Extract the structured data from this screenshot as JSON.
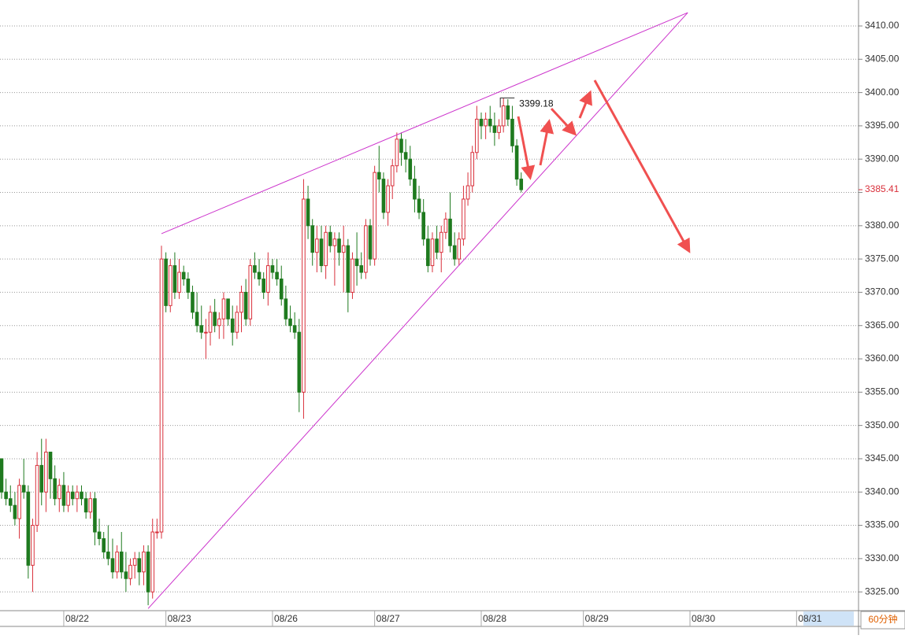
{
  "chart_data": {
    "type": "candlestick",
    "period": "60分钟",
    "up_color": "#d9303b",
    "down_color": "#1f7a1f",
    "grid": true,
    "open": [
      3345,
      3340,
      3339,
      3338,
      3336,
      3341,
      3340,
      3329,
      3335,
      3344,
      3340,
      3346,
      3342,
      3339,
      3341,
      3338,
      3340,
      3339,
      3340,
      3339,
      3337,
      3339,
      3334,
      3333,
      3331,
      3330,
      3328,
      3331,
      3328,
      3327,
      3329,
      3330,
      3328,
      3331,
      3325,
      3334,
      3334,
      3375,
      3368,
      3374,
      3370,
      3373,
      3372,
      3370,
      3367,
      3365,
      3364,
      3364,
      3367,
      3365,
      3366,
      3369,
      3366,
      3364,
      3367,
      3370,
      3366,
      3374,
      3373,
      3372,
      3370,
      3374,
      3373,
      3372,
      3369,
      3366,
      3365,
      3364,
      3355,
      3384,
      3380,
      3376,
      3378,
      3374,
      3379,
      3377,
      3378,
      3376,
      3377,
      3370,
      3375,
      3374,
      3373,
      3380,
      3375,
      3388,
      3387,
      3382,
      3386,
      3389,
      3393,
      3391,
      3390,
      3387,
      3384,
      3382,
      3378,
      3374,
      3378,
      3376,
      3379,
      3381,
      3377,
      3375,
      3378,
      3384,
      3386,
      3391,
      3396,
      3395,
      3396,
      3395,
      3394,
      3395,
      3398,
      3396,
      3392,
      3387
    ],
    "high": [
      3345,
      3342,
      3341,
      3340,
      3342,
      3345,
      3341,
      3336,
      3346,
      3348,
      3348,
      3346,
      3344,
      3342,
      3343,
      3341,
      3341,
      3341,
      3341,
      3340,
      3340,
      3340,
      3336,
      3334,
      3335,
      3333,
      3332,
      3334,
      3331,
      3330,
      3331,
      3331,
      3332,
      3332,
      3336,
      3336,
      3377,
      3376,
      3375,
      3376,
      3375,
      3374,
      3373,
      3371,
      3370,
      3368,
      3366,
      3368,
      3369,
      3367,
      3370,
      3369,
      3368,
      3368,
      3371,
      3372,
      3375,
      3376,
      3375,
      3373,
      3376,
      3375,
      3375,
      3374,
      3371,
      3368,
      3367,
      3366,
      3387,
      3386,
      3381,
      3380,
      3380,
      3380,
      3380,
      3379,
      3379,
      3380,
      3378,
      3376,
      3379,
      3376,
      3381,
      3381,
      3389,
      3392,
      3388,
      3387,
      3390,
      3394,
      3394,
      3393,
      3392,
      3389,
      3386,
      3384,
      3380,
      3379,
      3380,
      3380,
      3382,
      3385,
      3379,
      3379,
      3386,
      3388,
      3392,
      3398,
      3397,
      3397,
      3398,
      3397,
      3396,
      3399.18,
      3399,
      3398,
      3393,
      3388
    ],
    "low": [
      3339,
      3338,
      3337,
      3335,
      3333,
      3339,
      3327,
      3325,
      3334,
      3338,
      3337,
      3339,
      3338,
      3337,
      3337,
      3337,
      3338,
      3337,
      3338,
      3336,
      3336,
      3332,
      3332,
      3330,
      3329,
      3327,
      3327,
      3327,
      3325,
      3326,
      3327,
      3326,
      3326,
      3323,
      3324,
      3333,
      3333,
      3367,
      3367,
      3369,
      3369,
      3371,
      3369,
      3366,
      3364,
      3363,
      3360,
      3362,
      3364,
      3363,
      3363,
      3365,
      3362,
      3363,
      3364,
      3365,
      3365,
      3372,
      3371,
      3369,
      3368,
      3372,
      3371,
      3368,
      3365,
      3364,
      3363,
      3352,
      3351,
      3378,
      3374,
      3373,
      3373,
      3372,
      3376,
      3371,
      3374,
      3370,
      3367,
      3369,
      3371,
      3372,
      3372,
      3374,
      3374,
      3385,
      3381,
      3380,
      3384,
      3388,
      3389,
      3388,
      3386,
      3382,
      3381,
      3377,
      3373,
      3373,
      3375,
      3373,
      3378,
      3376,
      3374,
      3374,
      3377,
      3383,
      3385,
      3390,
      3393,
      3393,
      3394,
      3392,
      3393,
      3394,
      3395,
      3391,
      3386,
      3385
    ],
    "close": [
      3340,
      3339,
      3338,
      3336,
      3341,
      3340,
      3329,
      3335,
      3344,
      3340,
      3346,
      3342,
      3339,
      3341,
      3338,
      3340,
      3339,
      3340,
      3339,
      3337,
      3339,
      3334,
      3333,
      3331,
      3330,
      3328,
      3331,
      3328,
      3327,
      3329,
      3330,
      3328,
      3331,
      3325,
      3334,
      3334,
      3375,
      3368,
      3374,
      3370,
      3373,
      3372,
      3370,
      3367,
      3365,
      3364,
      3364,
      3367,
      3365,
      3366,
      3369,
      3366,
      3364,
      3367,
      3370,
      3366,
      3374,
      3373,
      3372,
      3370,
      3374,
      3373,
      3372,
      3369,
      3366,
      3365,
      3364,
      3355,
      3384,
      3380,
      3376,
      3378,
      3374,
      3379,
      3377,
      3378,
      3376,
      3377,
      3370,
      3375,
      3374,
      3373,
      3380,
      3375,
      3388,
      3387,
      3382,
      3386,
      3389,
      3393,
      3391,
      3390,
      3387,
      3384,
      3382,
      3378,
      3374,
      3378,
      3376,
      3379,
      3381,
      3377,
      3375,
      3378,
      3384,
      3386,
      3391,
      3396,
      3395,
      3396,
      3395,
      3394,
      3395,
      3398,
      3396,
      3392,
      3387,
      3385.41
    ],
    "xlim": [
      0,
      191
    ],
    "xticks": [
      {
        "value": 14,
        "label": "08/22"
      },
      {
        "value": 37,
        "label": "08/23"
      },
      {
        "value": 61,
        "label": "08/26"
      },
      {
        "value": 84,
        "label": "08/27"
      },
      {
        "value": 108,
        "label": "08/28"
      },
      {
        "value": 131,
        "label": "08/29"
      },
      {
        "value": 155,
        "label": "08/30"
      },
      {
        "value": 179,
        "label": "08/31"
      }
    ],
    "ylim": [
      3322.3,
      3413.9
    ],
    "yticks": [
      {
        "value": 3325,
        "label": "3325.00"
      },
      {
        "value": 3330,
        "label": "3330.00"
      },
      {
        "value": 3335,
        "label": "3335.00"
      },
      {
        "value": 3340,
        "label": "3340.00"
      },
      {
        "value": 3345,
        "label": "3345.00"
      },
      {
        "value": 3350,
        "label": "3350.00"
      },
      {
        "value": 3355,
        "label": "3355.00"
      },
      {
        "value": 3360,
        "label": "3360.00"
      },
      {
        "value": 3365,
        "label": "3365.00"
      },
      {
        "value": 3370,
        "label": "3370.00"
      },
      {
        "value": 3375,
        "label": "3375.00"
      },
      {
        "value": 3380,
        "label": "3380.00"
      },
      {
        "value": 3385,
        "label": "3385.00"
      },
      {
        "value": 3390,
        "label": "3390.00"
      },
      {
        "value": 3395,
        "label": "3395.00"
      },
      {
        "value": 3400,
        "label": "3400.00"
      },
      {
        "value": 3405,
        "label": "3405.00"
      },
      {
        "value": 3410,
        "label": "3410.00"
      }
    ],
    "trendlines": [
      {
        "color": "#cc33cc",
        "points": [
          [
            36,
            3378.8
          ],
          [
            154.5,
            3412
          ]
        ]
      },
      {
        "color": "#cc33cc",
        "points": [
          [
            33,
            3322.5
          ],
          [
            154.5,
            3412
          ]
        ]
      }
    ],
    "high_annotation": {
      "index": 113,
      "value": 3399.18,
      "label": "3399.18"
    },
    "last_price": {
      "value": 3385.41,
      "label": "3385.41"
    }
  }
}
